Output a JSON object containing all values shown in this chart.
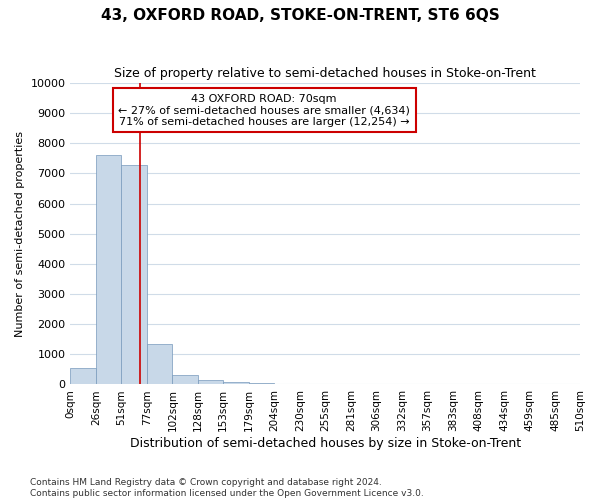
{
  "title": "43, OXFORD ROAD, STOKE-ON-TRENT, ST6 6QS",
  "subtitle": "Size of property relative to semi-detached houses in Stoke-on-Trent",
  "xlabel": "Distribution of semi-detached houses by size in Stoke-on-Trent",
  "ylabel": "Number of semi-detached properties",
  "footnote": "Contains HM Land Registry data © Crown copyright and database right 2024.\nContains public sector information licensed under the Open Government Licence v3.0.",
  "bin_edges": [
    0,
    26,
    51,
    77,
    102,
    128,
    153,
    179,
    204,
    230,
    255,
    281,
    306,
    332,
    357,
    383,
    408,
    434,
    459,
    485,
    510
  ],
  "bar_heights": [
    560,
    7620,
    7280,
    1350,
    320,
    150,
    80,
    50,
    20,
    5,
    5,
    3,
    2,
    1,
    1,
    0,
    0,
    0,
    0,
    0
  ],
  "property_size": 70,
  "annotation_title": "43 OXFORD ROAD: 70sqm",
  "annotation_line1": "← 27% of semi-detached houses are smaller (4,634)",
  "annotation_line2": "71% of semi-detached houses are larger (12,254) →",
  "bar_color": "#c8d8e8",
  "bar_edge_color": "#7799bb",
  "line_color": "#cc0000",
  "annotation_box_edge_color": "#cc0000",
  "bg_color": "#ffffff",
  "plot_bg_color": "#ffffff",
  "grid_color": "#d0dce8",
  "ylim": [
    0,
    10000
  ],
  "yticks": [
    0,
    1000,
    2000,
    3000,
    4000,
    5000,
    6000,
    7000,
    8000,
    9000,
    10000
  ],
  "title_fontsize": 11,
  "subtitle_fontsize": 9,
  "ylabel_fontsize": 8,
  "xlabel_fontsize": 9,
  "footnote_fontsize": 6.5,
  "tick_fontsize": 7.5,
  "ytick_fontsize": 8
}
